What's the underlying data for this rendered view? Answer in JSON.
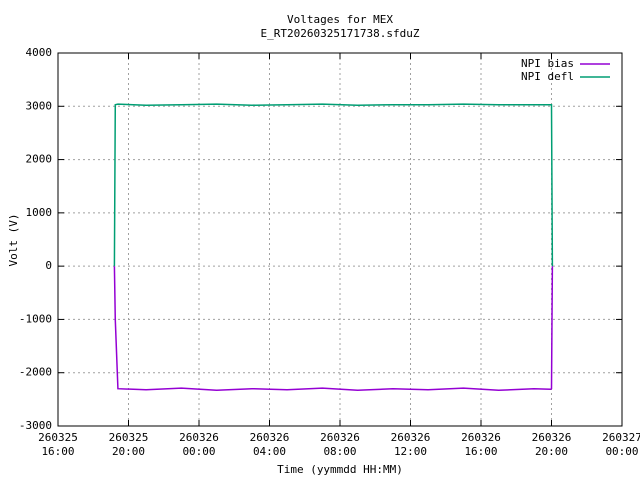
{
  "chart_data": {
    "type": "line",
    "title": "Voltages for MEX",
    "subtitle": "E_RT20260325171738.sfduZ",
    "x_label": "Time (yymmdd HH:MM)",
    "y_label": "Volt (V)",
    "x": [
      19.2,
      19.25,
      19.4,
      21,
      23,
      25,
      27,
      29,
      31,
      33,
      35,
      37,
      39,
      41,
      43,
      43.95,
      44.0,
      44.05
    ],
    "series": [
      {
        "name": "NPI bias",
        "color": "#9400d3",
        "values": [
          0,
          -1000,
          -2300,
          -2320,
          -2290,
          -2330,
          -2300,
          -2320,
          -2290,
          -2330,
          -2300,
          -2320,
          -2290,
          -2330,
          -2300,
          -2310,
          -2300,
          0
        ]
      },
      {
        "name": "NPI defl",
        "color": "#009e73",
        "values": [
          0,
          3030,
          3040,
          3020,
          3030,
          3040,
          3020,
          3030,
          3040,
          3020,
          3030,
          3030,
          3040,
          3030,
          3030,
          3030,
          3030,
          0
        ]
      }
    ],
    "xlim": [
      16,
      48
    ],
    "xticks": [
      {
        "value": 16,
        "label": "260325 16:00"
      },
      {
        "value": 20,
        "label": "260325 20:00"
      },
      {
        "value": 24,
        "label": "260326 00:00"
      },
      {
        "value": 28,
        "label": "260326 04:00"
      },
      {
        "value": 32,
        "label": "260326 08:00"
      },
      {
        "value": 36,
        "label": "260326 12:00"
      },
      {
        "value": 40,
        "label": "260326 16:00"
      },
      {
        "value": 44,
        "label": "260326 20:00"
      },
      {
        "value": 48,
        "label": "260327 00:00"
      }
    ],
    "ylim": [
      -3000,
      4000
    ],
    "yticks": [
      -3000,
      -2000,
      -1000,
      0,
      1000,
      2000,
      3000,
      4000
    ],
    "grid": true,
    "legend": "top-right"
  }
}
